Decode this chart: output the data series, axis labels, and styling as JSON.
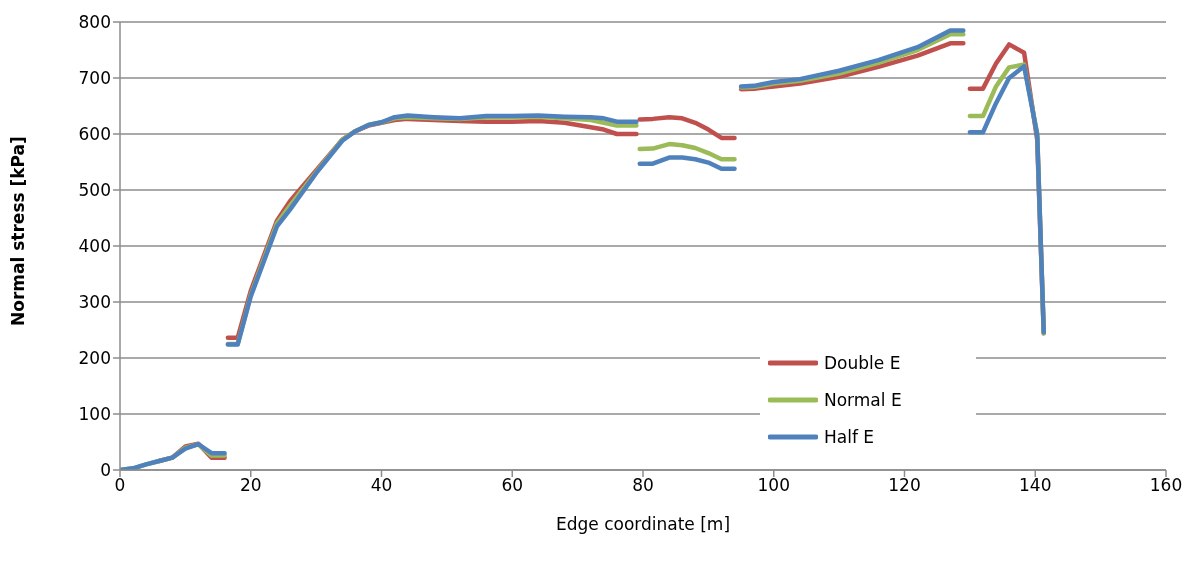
{
  "chart_data": {
    "type": "line",
    "xlabel": "Edge coordinate [m]",
    "ylabel": "Normal stress [kPa]",
    "x": [
      0,
      2,
      4,
      6,
      8,
      10,
      12,
      14,
      16,
      16.2,
      16.5,
      18,
      20,
      24,
      26,
      30,
      34,
      36,
      38,
      40,
      42,
      44,
      48,
      52,
      56,
      60,
      64,
      68,
      72,
      74,
      76,
      79,
      79.2,
      79.5,
      81.5,
      84,
      86,
      88,
      90,
      92,
      94,
      94.5,
      95,
      97,
      100,
      104,
      110,
      116,
      122,
      127,
      129,
      129.5,
      130,
      132,
      134,
      136,
      138.3,
      140.3,
      141.3
    ],
    "series": [
      {
        "name": "Double E",
        "color": "#c0504d",
        "values": [
          null,
          null,
          null,
          16,
          22,
          42,
          47,
          22,
          22,
          null,
          236,
          236,
          320,
          445,
          480,
          535,
          590,
          605,
          615,
          620,
          625,
          627,
          625,
          623,
          622,
          622,
          623,
          620,
          612,
          608,
          600,
          600,
          null,
          626,
          627,
          630,
          628,
          620,
          608,
          593,
          593,
          null,
          680,
          681,
          685,
          690,
          702,
          720,
          740,
          762,
          762,
          null,
          681,
          681,
          726,
          760,
          745,
          590,
          244
        ]
      },
      {
        "name": "Normal E",
        "color": "#9bbb59",
        "values": [
          0,
          3,
          10,
          16,
          22,
          40,
          46,
          26,
          26,
          null,
          225,
          225,
          313,
          440,
          472,
          532,
          590,
          605,
          616,
          621,
          628,
          630,
          628,
          627,
          630,
          630,
          631,
          628,
          625,
          620,
          615,
          615,
          null,
          573,
          574,
          582,
          580,
          575,
          566,
          555,
          555,
          null,
          683,
          684,
          690,
          695,
          708,
          727,
          750,
          778,
          778,
          null,
          632,
          632,
          685,
          719,
          724,
          600,
          244
        ]
      },
      {
        "name": "Half E",
        "color": "#4f81bd",
        "values": [
          0,
          3,
          10,
          16,
          22,
          38,
          46,
          30,
          30,
          null,
          224,
          224,
          310,
          435,
          465,
          530,
          588,
          605,
          616,
          621,
          630,
          633,
          630,
          628,
          632,
          632,
          633,
          631,
          630,
          628,
          622,
          622,
          null,
          547,
          547,
          558,
          558,
          555,
          549,
          538,
          538,
          null,
          685,
          686,
          693,
          698,
          713,
          732,
          755,
          785,
          785,
          null,
          603,
          603,
          655,
          700,
          721,
          599,
          246
        ]
      }
    ],
    "xlim": [
      0,
      160
    ],
    "xticks": [
      0,
      20,
      40,
      60,
      80,
      100,
      120,
      140,
      160
    ],
    "ylim": [
      0,
      800
    ],
    "yticks": [
      0,
      100,
      200,
      300,
      400,
      500,
      600,
      700,
      800
    ],
    "grid": "y",
    "legend": "bottom right",
    "marker": "none",
    "line_style": "solid"
  }
}
